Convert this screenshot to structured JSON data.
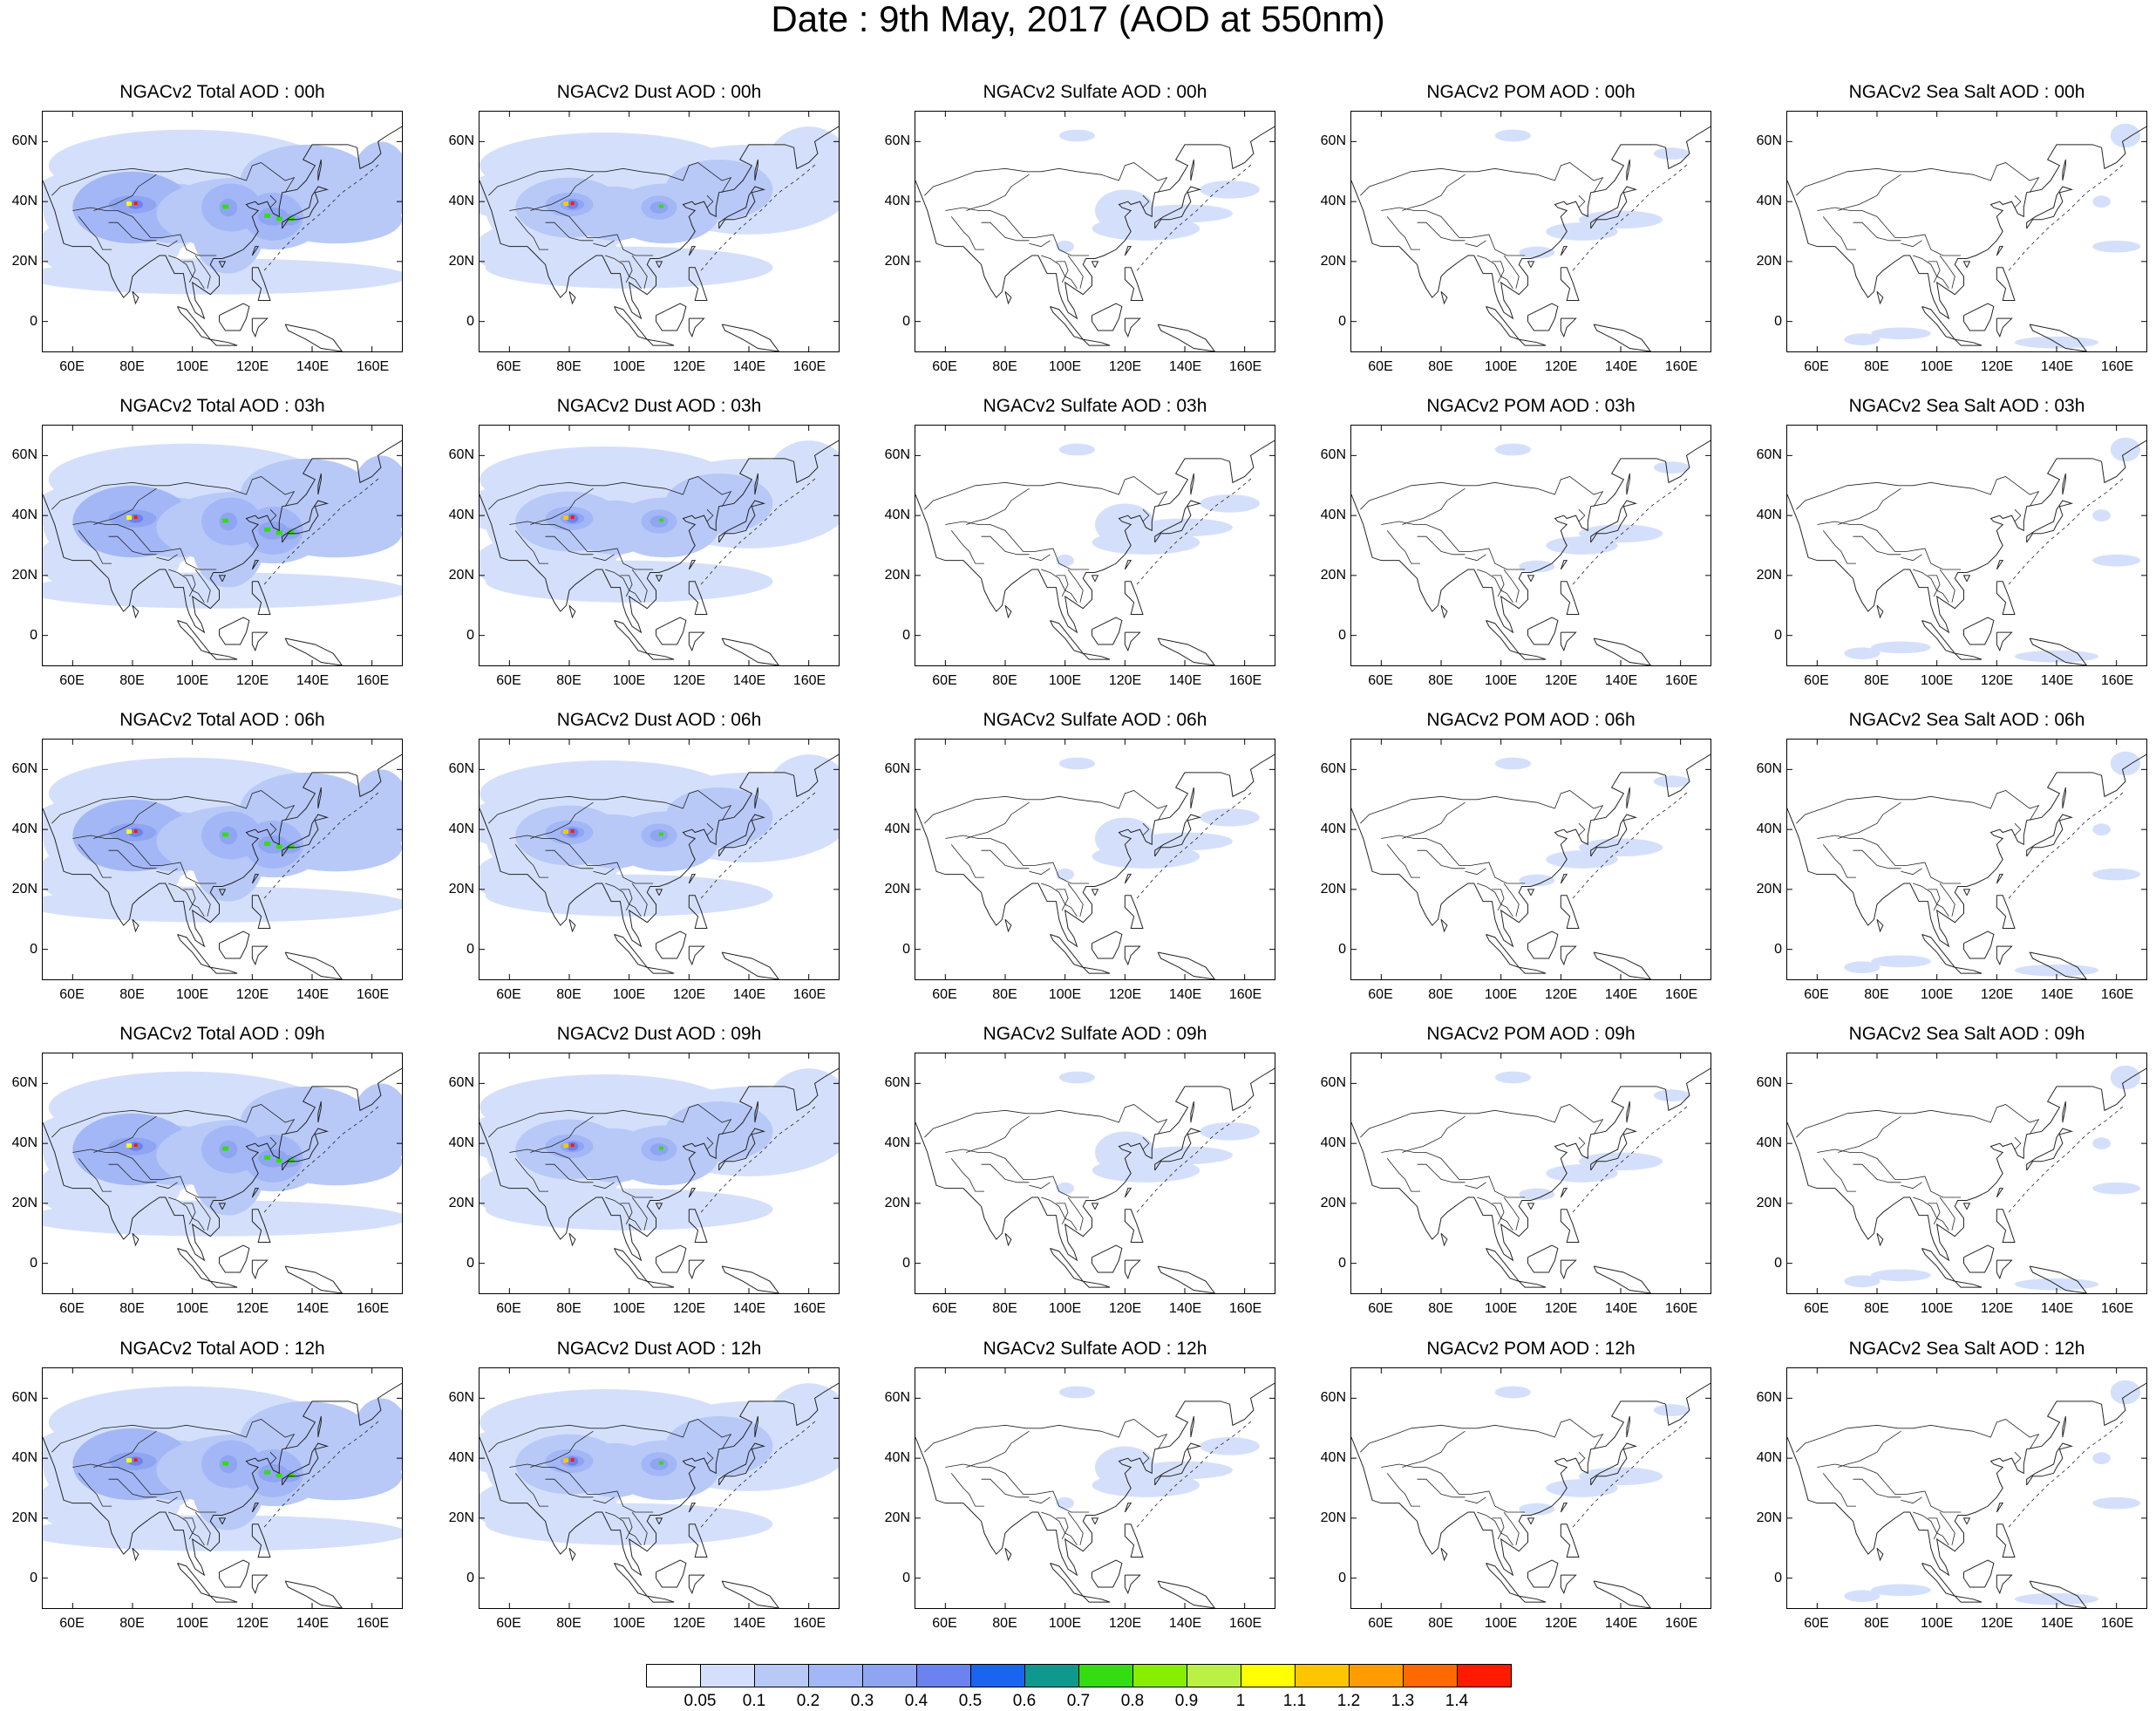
{
  "title": "Date : 9th May, 2017 (AOD at 550nm)",
  "panels": [
    [
      "NGACv2 Total AOD : 00h",
      "NGACv2 Dust AOD : 00h",
      "NGACv2 Sulfate AOD : 00h",
      "NGACv2 POM AOD : 00h",
      "NGACv2 Sea Salt AOD : 00h"
    ],
    [
      "NGACv2 Total AOD : 03h",
      "NGACv2 Dust AOD : 03h",
      "NGACv2 Sulfate AOD : 03h",
      "NGACv2 POM AOD : 03h",
      "NGACv2 Sea Salt AOD : 03h"
    ],
    [
      "NGACv2 Total AOD : 06h",
      "NGACv2 Dust AOD : 06h",
      "NGACv2 Sulfate AOD : 06h",
      "NGACv2 POM AOD : 06h",
      "NGACv2 Sea Salt AOD : 06h"
    ],
    [
      "NGACv2 Total AOD : 09h",
      "NGACv2 Dust AOD : 09h",
      "NGACv2 Sulfate AOD : 09h",
      "NGACv2 POM AOD : 09h",
      "NGACv2 Sea Salt  AOD : 09h"
    ],
    [
      "NGACv2 Total AOD  : 12h",
      "NGACv2 Dust AOD : 12h",
      "NGACv2 Sulfate AOD : 12h",
      "NGACv2 POM  AOD : 12h",
      "NGACv2 Sea Salt  AOD : 12h"
    ]
  ],
  "lat_ticks": [
    "60N",
    "40N",
    "20N",
    "0"
  ],
  "lon_ticks": [
    "60E",
    "80E",
    "100E",
    "120E",
    "140E",
    "160E"
  ],
  "colorbar": {
    "labels": [
      "0.05",
      "0.1",
      "0.2",
      "0.3",
      "0.4",
      "0.5",
      "0.6",
      "0.7",
      "0.8",
      "0.9",
      "1",
      "1.1",
      "1.2",
      "1.3",
      "1.4"
    ],
    "colors": [
      "#ffffff",
      "#d4e0fb",
      "#b8c9f8",
      "#a3b7f6",
      "#8fa5f2",
      "#6c82ee",
      "#1a64f0",
      "#0d9a8c",
      "#33dd11",
      "#88ee00",
      "#bbf044",
      "#ffff00",
      "#ffc600",
      "#ff9d00",
      "#ff6a00",
      "#ff1a00"
    ]
  }
}
